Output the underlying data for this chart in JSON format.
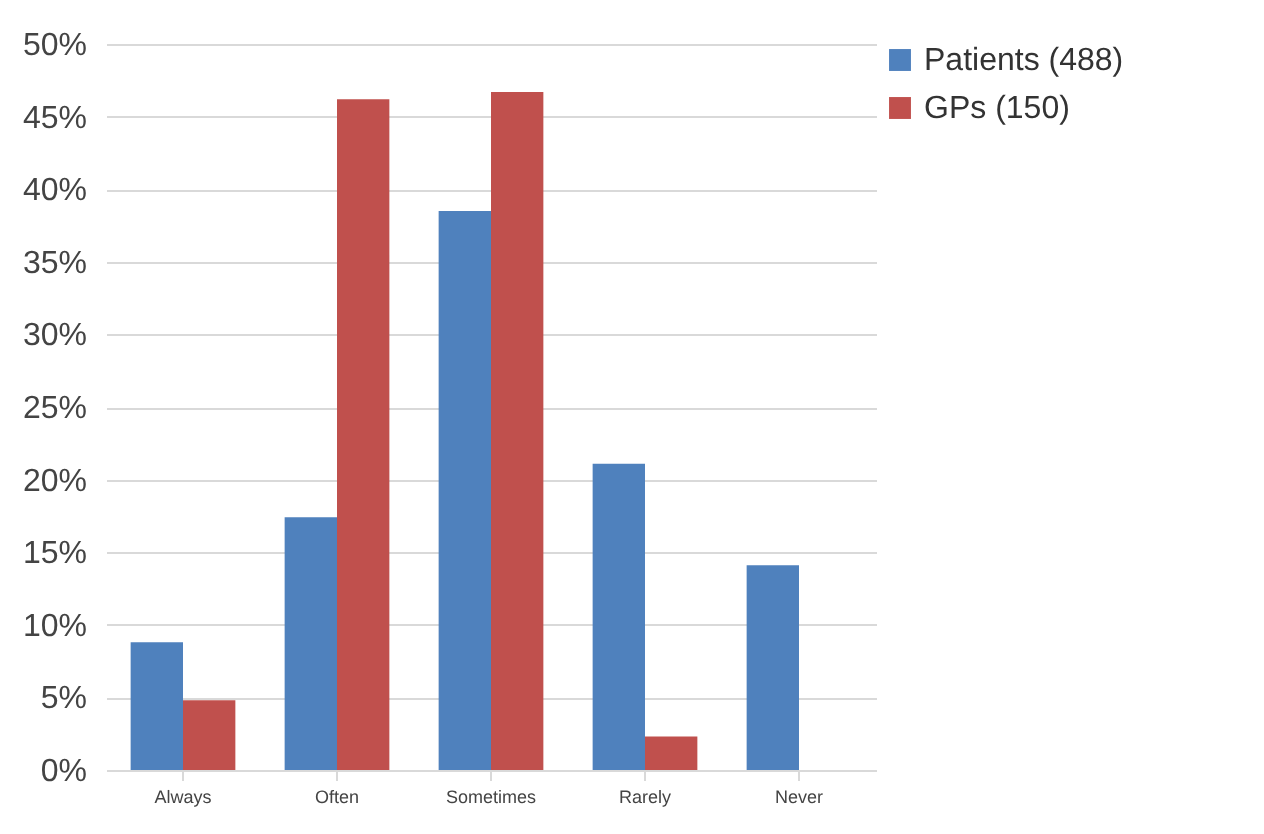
{
  "chart_data": {
    "type": "bar",
    "categories": [
      "Always",
      "Often",
      "Sometimes",
      "Rarely",
      "Never"
    ],
    "series": [
      {
        "name": "Patients (488)",
        "color": "#4f81bd",
        "values": [
          8.8,
          17.4,
          38.5,
          21.1,
          14.1
        ]
      },
      {
        "name": "GPs (150)",
        "color": "#c0504d",
        "values": [
          4.8,
          46.2,
          46.7,
          2.3,
          0
        ]
      }
    ],
    "ylim": [
      0,
      50
    ],
    "yticks": [
      {
        "value": 0,
        "label": "0%"
      },
      {
        "value": 5,
        "label": "5%"
      },
      {
        "value": 10,
        "label": "10%"
      },
      {
        "value": 15,
        "label": "15%"
      },
      {
        "value": 20,
        "label": "20%"
      },
      {
        "value": 25,
        "label": "25%"
      },
      {
        "value": 30,
        "label": "30%"
      },
      {
        "value": 35,
        "label": "35%"
      },
      {
        "value": 40,
        "label": "40%"
      },
      {
        "value": 45,
        "label": "45%"
      },
      {
        "value": 50,
        "label": "50%"
      }
    ],
    "grid": "y",
    "legend": "right"
  }
}
